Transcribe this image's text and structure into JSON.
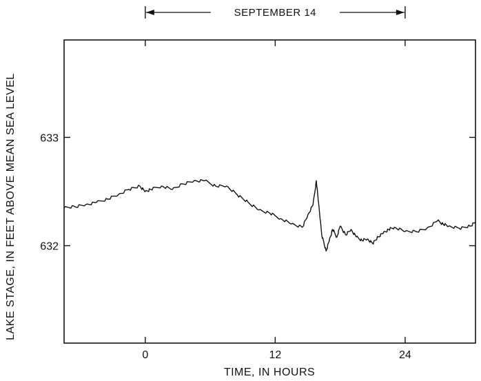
{
  "chart_data": {
    "type": "line",
    "title": "",
    "xlabel": "TIME, IN HOURS",
    "ylabel": "LAKE STAGE, IN FEET ABOVE MEAN SEA LEVEL",
    "xlim": [
      -7.5,
      30.5
    ],
    "ylim": [
      631.1,
      633.9
    ],
    "x_ticks": [
      0,
      12,
      24
    ],
    "x_tick_labels": [
      "0",
      "12",
      "24"
    ],
    "y_ticks": [
      632,
      633
    ],
    "y_tick_labels": [
      "632",
      "633"
    ],
    "grid": false,
    "legend": "none",
    "annotation": {
      "label": "SEPTEMBER 14",
      "x_start": 0,
      "x_end": 24
    },
    "series": [
      {
        "x": [
          -7.5,
          -6.5,
          -5.5,
          -4.5,
          -3.5,
          -2.5,
          -1.5,
          -0.5,
          0,
          0.5,
          1.5,
          2.5,
          3.5,
          4.5,
          5.5,
          6.5,
          7.5,
          8.5,
          9.5,
          10.5,
          11.5,
          12.5,
          13.5,
          14.5,
          15.0,
          15.5,
          15.8,
          16.0,
          16.3,
          16.7,
          17.0,
          17.3,
          17.7,
          18.0,
          18.5,
          19.0,
          19.5,
          20.0,
          20.5,
          21.0,
          21.5,
          22.0,
          22.5,
          23.0,
          24.0,
          25.0,
          26.0,
          27.0,
          27.5,
          28.0,
          29.0,
          30.0,
          30.5
        ],
        "y": [
          632.35,
          632.36,
          632.38,
          632.4,
          632.43,
          632.47,
          632.52,
          632.55,
          632.5,
          632.52,
          632.55,
          632.52,
          632.57,
          632.6,
          632.6,
          632.55,
          632.55,
          632.47,
          632.4,
          632.33,
          632.3,
          632.25,
          632.2,
          632.17,
          632.28,
          632.38,
          632.6,
          632.4,
          632.1,
          631.95,
          632.05,
          632.15,
          632.08,
          632.18,
          632.1,
          632.15,
          632.08,
          632.05,
          632.06,
          632.02,
          632.08,
          632.12,
          632.15,
          632.17,
          632.13,
          632.13,
          632.16,
          632.23,
          632.2,
          632.18,
          632.16,
          632.18,
          632.22
        ]
      }
    ]
  }
}
